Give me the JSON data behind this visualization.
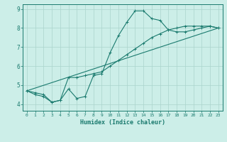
{
  "xlabel": "Humidex (Indice chaleur)",
  "bg_color": "#cceee8",
  "grid_color": "#aad4cc",
  "line_color": "#1a7a6e",
  "xlim": [
    -0.5,
    23.5
  ],
  "ylim": [
    3.65,
    9.25
  ],
  "xticks": [
    0,
    1,
    2,
    3,
    4,
    5,
    6,
    7,
    8,
    9,
    10,
    11,
    12,
    13,
    14,
    15,
    16,
    17,
    18,
    19,
    20,
    21,
    22,
    23
  ],
  "yticks": [
    4,
    5,
    6,
    7,
    8,
    9
  ],
  "line1_x": [
    0,
    1,
    2,
    3,
    4,
    5,
    6,
    7,
    8,
    9,
    10,
    11,
    12,
    13,
    14,
    15,
    16,
    17,
    18,
    19,
    20,
    21,
    22,
    23
  ],
  "line1_y": [
    4.7,
    4.5,
    4.4,
    4.1,
    4.2,
    4.8,
    4.3,
    4.4,
    5.5,
    5.6,
    6.7,
    7.6,
    8.3,
    8.9,
    8.9,
    8.5,
    8.4,
    7.9,
    7.8,
    7.8,
    7.9,
    8.0,
    8.1,
    8.0
  ],
  "line2_x": [
    0,
    1,
    2,
    3,
    4,
    5,
    6,
    7,
    8,
    9,
    10,
    11,
    12,
    13,
    14,
    15,
    16,
    17,
    18,
    19,
    20,
    21,
    22,
    23
  ],
  "line2_y": [
    4.7,
    4.6,
    4.5,
    4.1,
    4.2,
    5.4,
    5.4,
    5.5,
    5.6,
    5.7,
    6.0,
    6.3,
    6.6,
    6.9,
    7.2,
    7.5,
    7.7,
    7.9,
    8.0,
    8.1,
    8.1,
    8.1,
    8.1,
    8.0
  ],
  "line3_x": [
    0,
    23
  ],
  "line3_y": [
    4.7,
    8.0
  ]
}
